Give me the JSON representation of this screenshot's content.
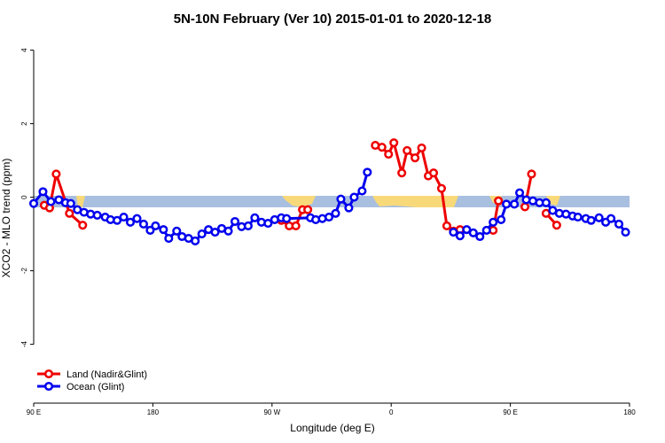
{
  "chart_data": {
    "type": "line",
    "title": "5N-10N February (Ver 10)   2015-01-01 to 2020-12-18",
    "x_label": "Longitude (deg E)",
    "y_label": "XCO2 - MLO trend (ppm)",
    "xlim": [
      -270,
      180
    ],
    "xticks": [
      {
        "value": -270,
        "label": "90 E"
      },
      {
        "value": -180,
        "label": "180"
      },
      {
        "value": -90,
        "label": "90 W"
      },
      0,
      {
        "value": 90,
        "label": "90 E"
      },
      180
    ],
    "ylim": [
      -5.6,
      4.4
    ],
    "yticks": [
      -4,
      -2,
      0,
      2,
      4
    ],
    "legend": "bottom-left",
    "series": [
      {
        "name": "Land (Nadir&Glint)",
        "color": "#ee0000",
        "x": [
          -262,
          -258,
          -253,
          -243,
          -233,
          null,
          -83,
          -77,
          -72,
          -67,
          -63,
          null,
          -12,
          -7,
          -2,
          2,
          8,
          12,
          18,
          23,
          28,
          32,
          38,
          42,
          47,
          52,
          null,
          77,
          81,
          null,
          101,
          106,
          null,
          117,
          125
        ],
        "values": [
          -0.22,
          -0.29,
          0.63,
          -0.44,
          -0.76,
          null,
          -0.63,
          -0.78,
          -0.78,
          -0.34,
          -0.34,
          null,
          1.41,
          1.36,
          1.17,
          1.48,
          0.66,
          1.27,
          1.07,
          1.34,
          0.58,
          0.66,
          0.24,
          -0.78,
          -0.92,
          -0.88,
          null,
          -0.9,
          -0.1,
          null,
          -0.26,
          0.63,
          null,
          -0.44,
          -0.76
        ]
      },
      {
        "name": "Ocean (Glint)",
        "color": "#0000ee",
        "x": [
          -270,
          -263,
          -257,
          -251,
          -246,
          -242,
          -237,
          -232,
          -227,
          -222,
          -216,
          -212,
          -207,
          -202,
          -197,
          -192,
          -187,
          -182,
          -178,
          -172,
          -168,
          -162,
          -158,
          -153,
          -148,
          -143,
          -138,
          -133,
          -128,
          -123,
          -118,
          -113,
          -108,
          -103,
          -98,
          -93,
          -88,
          -83,
          -79,
          -61,
          -57,
          -52,
          -47,
          -42,
          -38,
          -32,
          -28,
          -22,
          -18,
          null,
          47,
          52,
          57,
          62,
          67,
          72,
          77,
          83,
          87,
          93,
          97,
          102,
          107,
          112,
          117,
          122,
          127,
          132,
          137,
          141,
          147,
          151,
          157,
          162,
          166,
          172,
          177
        ],
        "values": [
          -0.17,
          0.15,
          -0.12,
          -0.07,
          -0.15,
          -0.17,
          -0.34,
          -0.41,
          -0.46,
          -0.49,
          -0.54,
          -0.61,
          -0.63,
          -0.54,
          -0.68,
          -0.58,
          -0.73,
          -0.9,
          -0.78,
          -0.88,
          -1.12,
          -0.92,
          -1.07,
          -1.12,
          -1.19,
          -1.0,
          -0.88,
          -0.95,
          -0.85,
          -0.92,
          -0.66,
          -0.8,
          -0.78,
          -0.56,
          -0.68,
          -0.71,
          -0.61,
          -0.56,
          -0.58,
          -0.56,
          -0.61,
          -0.58,
          -0.54,
          -0.44,
          -0.05,
          -0.29,
          0,
          0.17,
          0.68,
          null,
          -0.95,
          -1.05,
          -0.88,
          -0.97,
          -1.07,
          -0.9,
          -0.68,
          -0.61,
          -0.19,
          -0.19,
          0.12,
          -0.07,
          -0.1,
          -0.15,
          -0.15,
          -0.36,
          -0.44,
          -0.46,
          -0.51,
          -0.54,
          -0.58,
          -0.63,
          -0.56,
          -0.68,
          -0.58,
          -0.73,
          -0.95
        ]
      }
    ]
  }
}
